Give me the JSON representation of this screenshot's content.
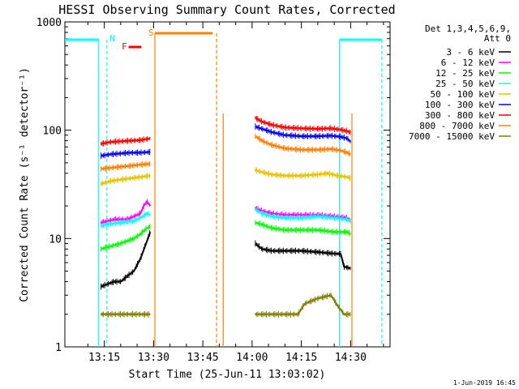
{
  "chart_data": {
    "type": "line",
    "title": "HESSI Observing Summary Count Rates, Corrected",
    "xlabel": "Start Time (25-Jun-11 13:03:02)",
    "ylabel": "Corrected Count Rate (s⁻¹ detector⁻¹)",
    "y_scale": "log",
    "ylim": [
      1,
      1000
    ],
    "xlim_minutes_after_13_00": [
      3,
      42
    ],
    "x_ticks": [
      {
        "label": "13:15",
        "min": 15
      },
      {
        "label": "13:30",
        "min": 30
      },
      {
        "label": "13:45",
        "min": 45
      },
      {
        "label": "14:00",
        "min": 60
      },
      {
        "label": "14:15",
        "min": 75
      },
      {
        "label": "14:30",
        "min": 90
      }
    ],
    "y_ticks": [
      {
        "label": "1",
        "value": 1
      },
      {
        "label": "10",
        "value": 10
      },
      {
        "label": "100",
        "value": 100
      },
      {
        "label": "1000",
        "value": 1000
      }
    ],
    "legend": {
      "header": [
        "Det 1,3,4,5,6,9,",
        "Att 0"
      ],
      "placement": "outside-right"
    },
    "series": [
      {
        "name": "3 - 6 keV",
        "color": "#000000",
        "seg1": [
          [
            14,
            3.6
          ],
          [
            16,
            3.8
          ],
          [
            18,
            4
          ],
          [
            20,
            4
          ],
          [
            22,
            4.5
          ],
          [
            24,
            5
          ],
          [
            26,
            6.5
          ],
          [
            28,
            9.5
          ],
          [
            29,
            11.5
          ]
        ],
        "seg2": [
          [
            61,
            9
          ],
          [
            63,
            8
          ],
          [
            66,
            7.7
          ],
          [
            70,
            7.7
          ],
          [
            75,
            7.7
          ],
          [
            80,
            7.5
          ],
          [
            84,
            7.3
          ],
          [
            87,
            7.2
          ],
          [
            88,
            5.5
          ],
          [
            90,
            5.3
          ]
        ]
      },
      {
        "name": "6 - 12 keV",
        "color": "#ff00ff",
        "seg1": [
          [
            14,
            14
          ],
          [
            16,
            14.5
          ],
          [
            18,
            15
          ],
          [
            20,
            15
          ],
          [
            22,
            15
          ],
          [
            24,
            16
          ],
          [
            26,
            17
          ],
          [
            27,
            20
          ],
          [
            28,
            22
          ],
          [
            29,
            20
          ]
        ],
        "seg2": [
          [
            61,
            19
          ],
          [
            63,
            18
          ],
          [
            66,
            17
          ],
          [
            70,
            16.5
          ],
          [
            75,
            16.5
          ],
          [
            80,
            16.5
          ],
          [
            85,
            16
          ],
          [
            89,
            15.5
          ],
          [
            90,
            14.5
          ]
        ]
      },
      {
        "name": "12 - 25 keV",
        "color": "#00ff00",
        "seg1": [
          [
            14,
            8
          ],
          [
            17,
            8.5
          ],
          [
            20,
            9
          ],
          [
            22,
            9.5
          ],
          [
            24,
            10
          ],
          [
            26,
            11
          ],
          [
            28,
            12.5
          ],
          [
            29,
            13
          ]
        ],
        "seg2": [
          [
            61,
            14
          ],
          [
            63,
            13.5
          ],
          [
            66,
            12.5
          ],
          [
            70,
            12
          ],
          [
            75,
            12
          ],
          [
            80,
            12
          ],
          [
            85,
            11.5
          ],
          [
            89,
            11.5
          ],
          [
            90,
            11
          ]
        ]
      },
      {
        "name": "25 - 50 keV",
        "color": "#00ffff",
        "seg1": [
          [
            14,
            13
          ],
          [
            16,
            13.5
          ],
          [
            20,
            14
          ],
          [
            24,
            14.5
          ],
          [
            26,
            15.5
          ],
          [
            28,
            17
          ],
          [
            29,
            16.5
          ]
        ],
        "seg2": [
          [
            61,
            18.5
          ],
          [
            63,
            17
          ],
          [
            66,
            16
          ],
          [
            70,
            15.5
          ],
          [
            75,
            15.5
          ],
          [
            80,
            16
          ],
          [
            85,
            15.5
          ],
          [
            89,
            15
          ],
          [
            90,
            14.5
          ]
        ]
      },
      {
        "name": "50 - 100 keV",
        "color": "#e6c400",
        "seg1": [
          [
            14,
            32
          ],
          [
            17,
            34
          ],
          [
            20,
            35
          ],
          [
            23,
            36
          ],
          [
            26,
            37
          ],
          [
            29,
            38
          ]
        ],
        "seg2": [
          [
            61,
            43
          ],
          [
            63,
            41
          ],
          [
            66,
            39
          ],
          [
            70,
            38
          ],
          [
            75,
            38
          ],
          [
            80,
            39
          ],
          [
            83,
            40
          ],
          [
            86,
            38
          ],
          [
            89,
            37
          ],
          [
            90,
            36
          ]
        ]
      },
      {
        "name": "100 - 300 keV",
        "color": "#0000ff",
        "seg1": [
          [
            14,
            58
          ],
          [
            17,
            60
          ],
          [
            20,
            61
          ],
          [
            23,
            62
          ],
          [
            26,
            62
          ],
          [
            29,
            63
          ]
        ],
        "seg2": [
          [
            61,
            108
          ],
          [
            63,
            103
          ],
          [
            66,
            96
          ],
          [
            70,
            90
          ],
          [
            75,
            88
          ],
          [
            80,
            88
          ],
          [
            84,
            89
          ],
          [
            87,
            87
          ],
          [
            89,
            84
          ],
          [
            90,
            78
          ]
        ]
      },
      {
        "name": "300 - 800 keV",
        "color": "#ff0000",
        "seg1": [
          [
            14,
            75
          ],
          [
            17,
            78
          ],
          [
            20,
            79
          ],
          [
            23,
            80
          ],
          [
            26,
            81
          ],
          [
            29,
            84
          ]
        ],
        "seg2": [
          [
            61,
            130
          ],
          [
            63,
            120
          ],
          [
            66,
            112
          ],
          [
            70,
            106
          ],
          [
            75,
            104
          ],
          [
            80,
            103
          ],
          [
            84,
            104
          ],
          [
            87,
            101
          ],
          [
            89,
            98
          ],
          [
            90,
            95
          ]
        ]
      },
      {
        "name": "800 - 7000 keV",
        "color": "#ff8000",
        "seg1": [
          [
            14,
            44
          ],
          [
            17,
            45
          ],
          [
            20,
            46
          ],
          [
            23,
            47
          ],
          [
            26,
            48
          ],
          [
            29,
            49
          ]
        ],
        "seg2": [
          [
            61,
            88
          ],
          [
            63,
            80
          ],
          [
            66,
            73
          ],
          [
            70,
            68
          ],
          [
            75,
            66
          ],
          [
            80,
            66
          ],
          [
            84,
            67
          ],
          [
            87,
            65
          ],
          [
            89,
            62
          ],
          [
            90,
            60
          ]
        ]
      },
      {
        "name": "7000 - 15000 keV",
        "color": "#808000",
        "seg1": [
          [
            14,
            2
          ],
          [
            29,
            2
          ]
        ],
        "seg2": [
          [
            61,
            2
          ],
          [
            70,
            2
          ],
          [
            74,
            2
          ],
          [
            76,
            2.5
          ],
          [
            80,
            2.8
          ],
          [
            84,
            3
          ],
          [
            86,
            2.4
          ],
          [
            88,
            2
          ],
          [
            90,
            2
          ]
        ]
      }
    ],
    "flags": [
      {
        "label": "N",
        "color": "#00ffff"
      },
      {
        "label": "S",
        "color": "#ff8000"
      },
      {
        "label": "F",
        "color": "#ff0000"
      }
    ]
  },
  "timestamp": "1-Jun-2019 16:45"
}
